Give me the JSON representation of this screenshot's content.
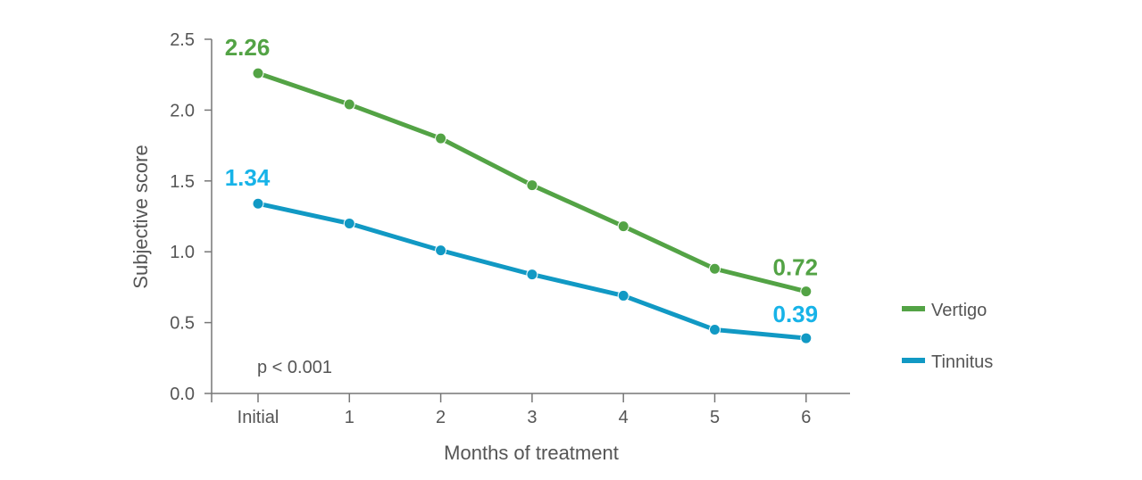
{
  "chart_data": {
    "type": "line",
    "xlabel": "Months of treatment",
    "ylabel": "Subjective score",
    "categories": [
      "Initial",
      "1",
      "2",
      "3",
      "4",
      "5",
      "6"
    ],
    "ylim": [
      0,
      2.5
    ],
    "yticks": [
      "0.0",
      "0.5",
      "1.0",
      "1.5",
      "2.0",
      "2.5"
    ],
    "annotation": "p < 0.001",
    "grid": false,
    "legend_position": "right",
    "series": [
      {
        "name": "Vertigo",
        "color": "#53a345",
        "values": [
          2.26,
          2.04,
          1.8,
          1.47,
          1.18,
          0.88,
          0.72
        ],
        "labels": {
          "first": "2.26",
          "last": "0.72"
        }
      },
      {
        "name": "Tinnitus",
        "color": "#1199c4",
        "label_color": "#17b3e8",
        "values": [
          1.34,
          1.2,
          1.01,
          0.84,
          0.69,
          0.45,
          0.39
        ],
        "labels": {
          "first": "1.34",
          "last": "0.39"
        }
      }
    ]
  }
}
